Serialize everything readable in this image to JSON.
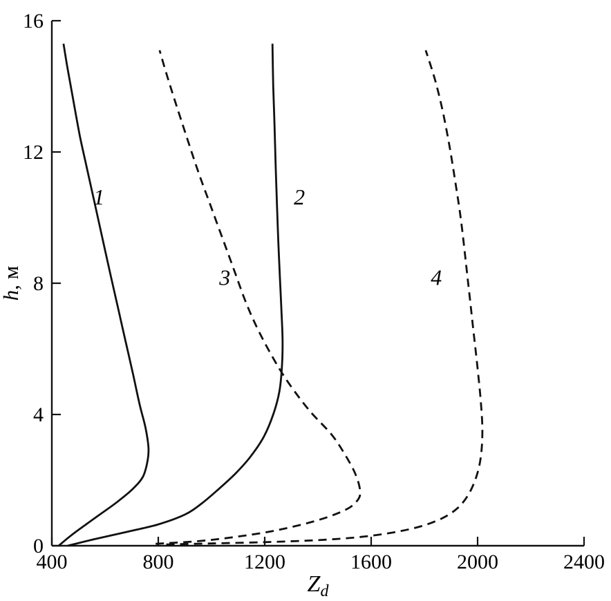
{
  "figure": {
    "background": "#ffffff",
    "line_color": "#111111"
  },
  "chart_data": {
    "type": "line",
    "title": "",
    "xlabel_main": "Z",
    "xlabel_sub": "d",
    "ylabel_italic": "h",
    "ylabel_rest": ", м",
    "xlim": [
      400,
      2400
    ],
    "ylim": [
      0,
      16
    ],
    "xticks": [
      400,
      800,
      1200,
      1600,
      2000,
      2400
    ],
    "yticks": [
      0,
      4,
      8,
      12,
      16
    ],
    "grid": false,
    "legend_position": "none",
    "series": [
      {
        "name": "1",
        "style": "solid",
        "label_pos": [
          577,
          10.4
        ],
        "points": [
          [
            426,
            0
          ],
          [
            470,
            0.3
          ],
          [
            520,
            0.6
          ],
          [
            580,
            0.95
          ],
          [
            640,
            1.3
          ],
          [
            700,
            1.7
          ],
          [
            742,
            2.1
          ],
          [
            760,
            2.6
          ],
          [
            763,
            3.0
          ],
          [
            752,
            3.6
          ],
          [
            730,
            4.3
          ],
          [
            706,
            5.2
          ],
          [
            678,
            6.2
          ],
          [
            650,
            7.2
          ],
          [
            622,
            8.2
          ],
          [
            592,
            9.3
          ],
          [
            562,
            10.4
          ],
          [
            532,
            11.5
          ],
          [
            505,
            12.5
          ],
          [
            478,
            13.7
          ],
          [
            458,
            14.6
          ],
          [
            444,
            15.3
          ]
        ]
      },
      {
        "name": "2",
        "style": "solid",
        "label_pos": [
          1330,
          10.4
        ],
        "points": [
          [
            460,
            0
          ],
          [
            560,
            0.2
          ],
          [
            680,
            0.42
          ],
          [
            800,
            0.65
          ],
          [
            900,
            0.95
          ],
          [
            965,
            1.3
          ],
          [
            1030,
            1.75
          ],
          [
            1090,
            2.2
          ],
          [
            1145,
            2.7
          ],
          [
            1195,
            3.3
          ],
          [
            1232,
            4.0
          ],
          [
            1255,
            4.7
          ],
          [
            1265,
            5.5
          ],
          [
            1267,
            6.3
          ],
          [
            1262,
            7.3
          ],
          [
            1257,
            8.2
          ],
          [
            1251,
            9.3
          ],
          [
            1246,
            10.4
          ],
          [
            1241,
            11.6
          ],
          [
            1237,
            12.8
          ],
          [
            1232,
            14.0
          ],
          [
            1229,
            15.3
          ]
        ]
      },
      {
        "name": "3",
        "style": "dashed",
        "label_pos": [
          1050,
          7.95
        ],
        "points": [
          [
            790,
            0.06
          ],
          [
            950,
            0.14
          ],
          [
            1100,
            0.28
          ],
          [
            1250,
            0.48
          ],
          [
            1400,
            0.78
          ],
          [
            1505,
            1.1
          ],
          [
            1550,
            1.4
          ],
          [
            1558,
            1.7
          ],
          [
            1540,
            2.2
          ],
          [
            1500,
            2.8
          ],
          [
            1450,
            3.4
          ],
          [
            1370,
            4.1
          ],
          [
            1295,
            4.9
          ],
          [
            1240,
            5.6
          ],
          [
            1180,
            6.5
          ],
          [
            1130,
            7.4
          ],
          [
            1085,
            8.4
          ],
          [
            1040,
            9.4
          ],
          [
            995,
            10.4
          ],
          [
            950,
            11.4
          ],
          [
            905,
            12.5
          ],
          [
            865,
            13.5
          ],
          [
            830,
            14.4
          ],
          [
            805,
            15.1
          ]
        ]
      },
      {
        "name": "4",
        "style": "dashed",
        "label_pos": [
          1845,
          7.95
        ],
        "points": [
          [
            830,
            0.04
          ],
          [
            1000,
            0.07
          ],
          [
            1200,
            0.11
          ],
          [
            1400,
            0.17
          ],
          [
            1550,
            0.26
          ],
          [
            1680,
            0.4
          ],
          [
            1790,
            0.6
          ],
          [
            1870,
            0.85
          ],
          [
            1925,
            1.15
          ],
          [
            1965,
            1.55
          ],
          [
            1995,
            2.1
          ],
          [
            2012,
            2.7
          ],
          [
            2018,
            3.5
          ],
          [
            2012,
            4.4
          ],
          [
            2000,
            5.4
          ],
          [
            1985,
            6.5
          ],
          [
            1970,
            7.6
          ],
          [
            1955,
            8.7
          ],
          [
            1938,
            9.9
          ],
          [
            1918,
            11.0
          ],
          [
            1896,
            12.1
          ],
          [
            1870,
            13.2
          ],
          [
            1840,
            14.2
          ],
          [
            1805,
            15.1
          ]
        ]
      }
    ]
  }
}
